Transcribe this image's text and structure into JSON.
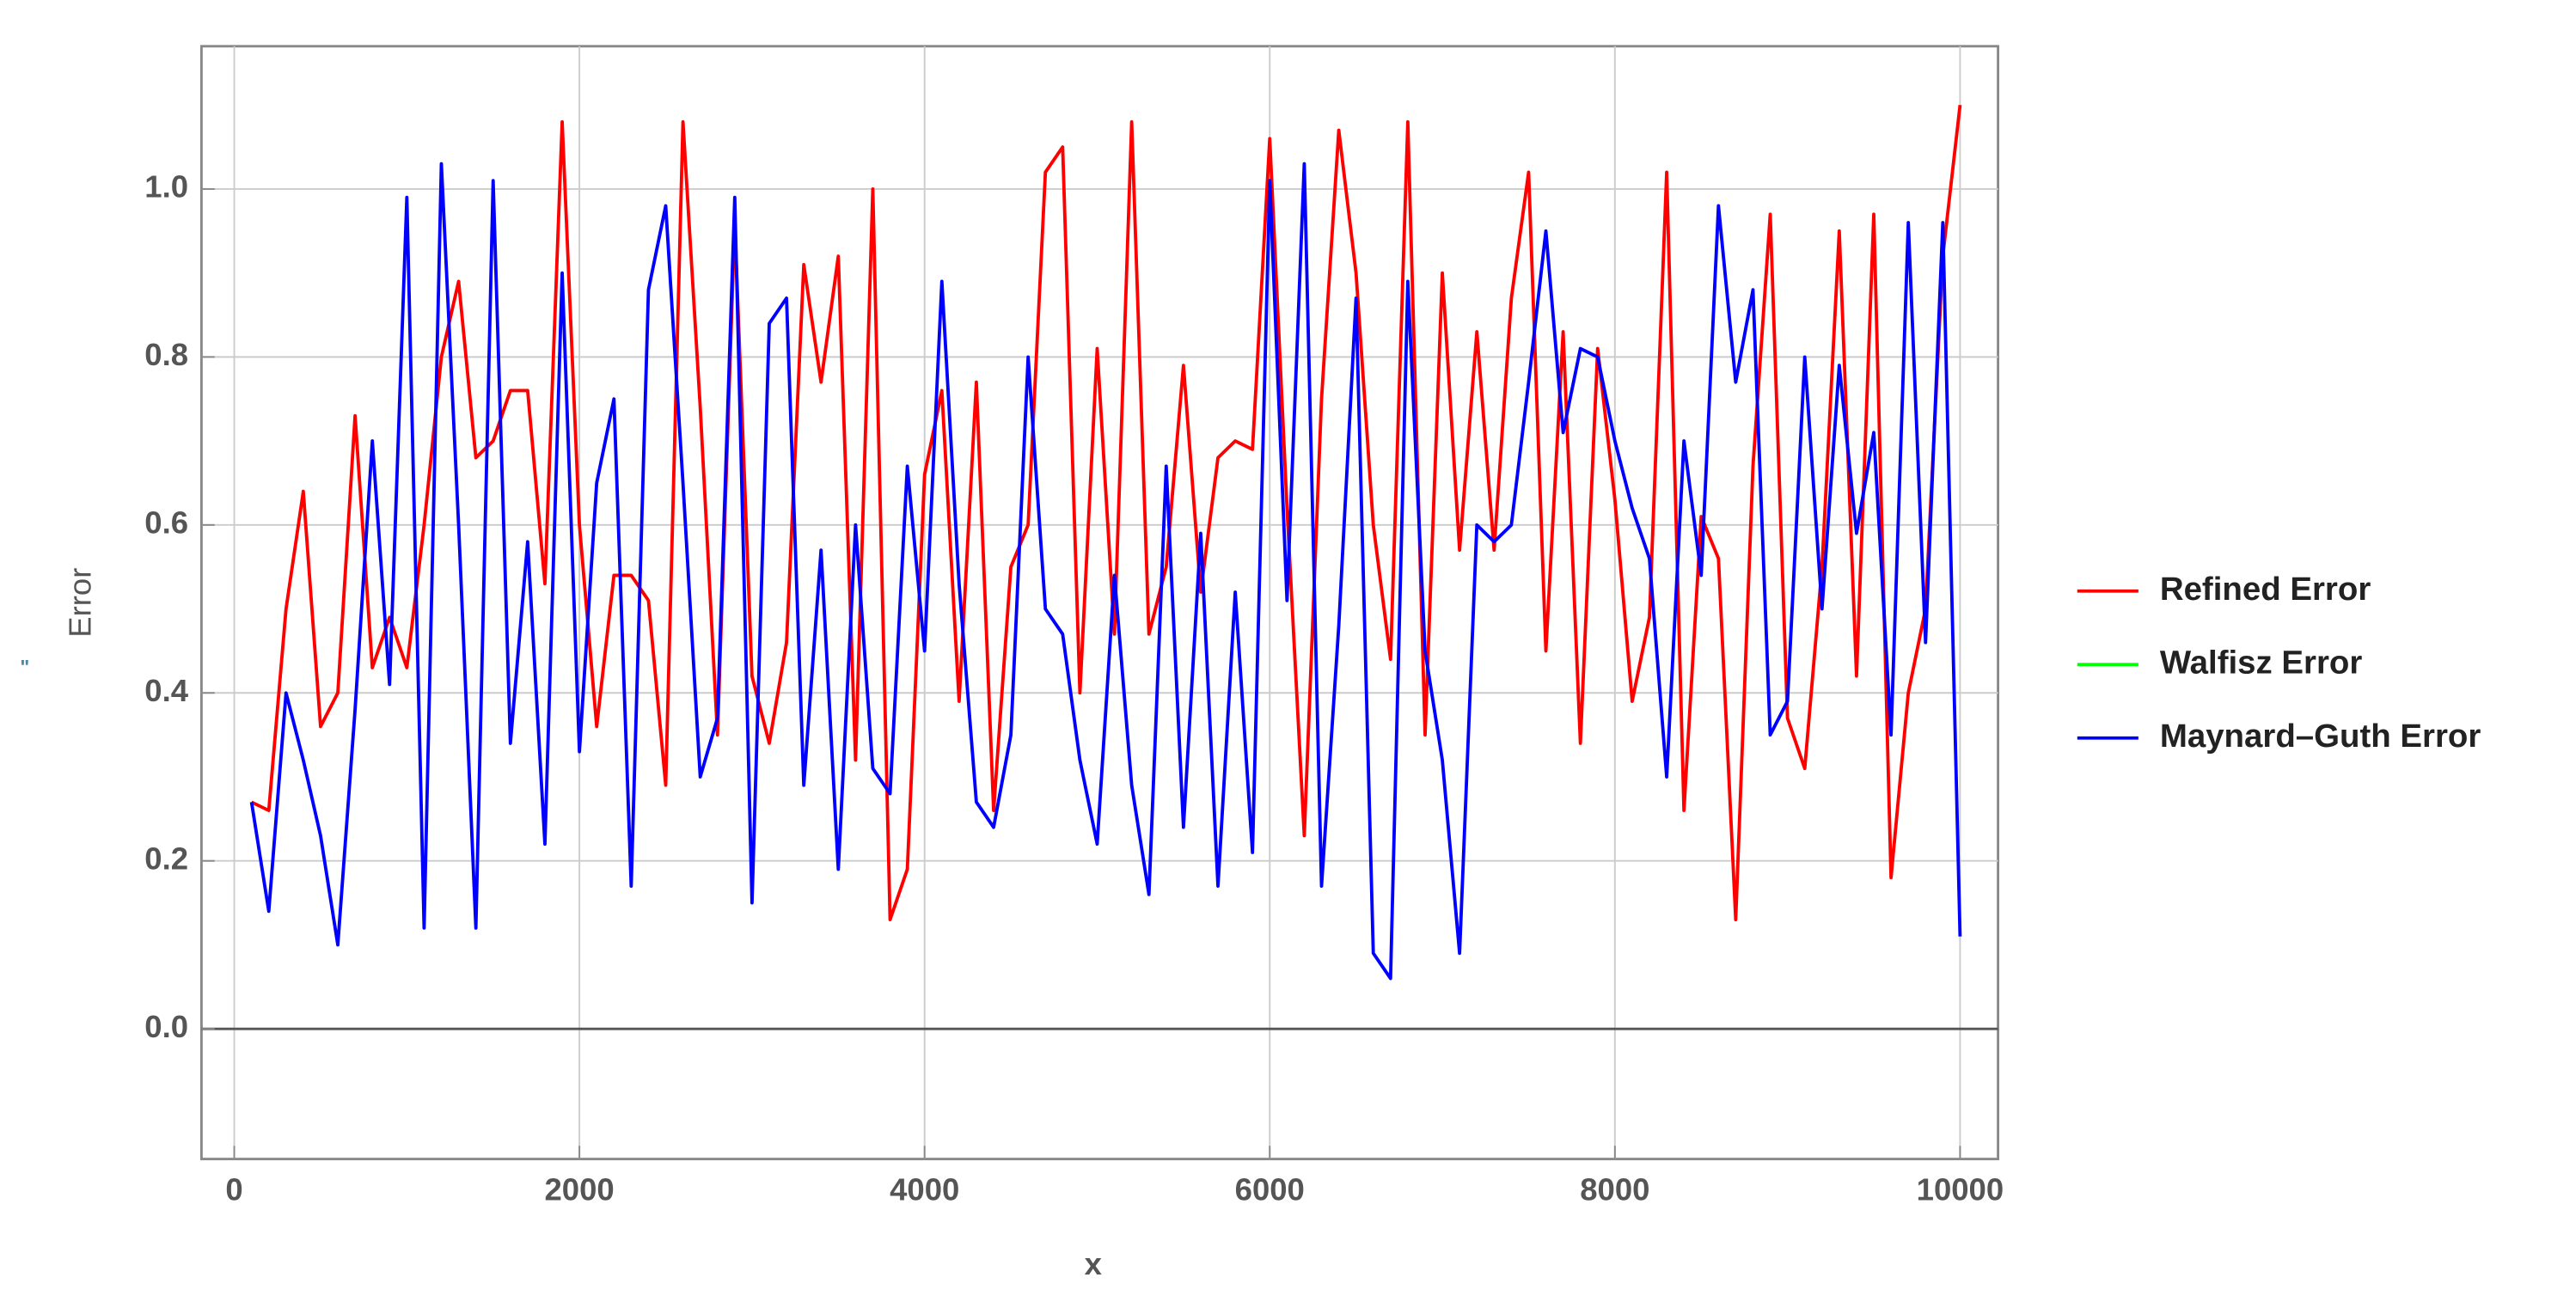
{
  "chart_data": {
    "type": "line",
    "xlabel": "x",
    "ylabel": "Error",
    "annotations": [
      "\""
    ],
    "x": [
      100,
      200,
      300,
      400,
      500,
      600,
      700,
      800,
      900,
      1000,
      1100,
      1200,
      1300,
      1400,
      1500,
      1600,
      1700,
      1800,
      1900,
      2000,
      2100,
      2200,
      2300,
      2400,
      2500,
      2600,
      2700,
      2800,
      2900,
      3000,
      3100,
      3200,
      3300,
      3400,
      3500,
      3600,
      3700,
      3800,
      3900,
      4000,
      4100,
      4200,
      4300,
      4400,
      4500,
      4600,
      4700,
      4800,
      4900,
      5000,
      5100,
      5200,
      5300,
      5400,
      5500,
      5600,
      5700,
      5800,
      5900,
      6000,
      6100,
      6200,
      6300,
      6400,
      6500,
      6600,
      6700,
      6800,
      6900,
      7000,
      7100,
      7200,
      7300,
      7400,
      7500,
      7600,
      7700,
      7800,
      7900,
      8000,
      8100,
      8200,
      8300,
      8400,
      8500,
      8600,
      8700,
      8800,
      8900,
      9000,
      9100,
      9200,
      9300,
      9400,
      9500,
      9600,
      9700,
      9800,
      9900,
      10000
    ],
    "series": [
      {
        "name": "Refined Error",
        "color": "#ff0000",
        "values": [
          0.27,
          0.26,
          0.5,
          0.64,
          0.36,
          0.4,
          0.73,
          0.43,
          0.49,
          0.43,
          0.6,
          0.8,
          0.89,
          0.68,
          0.7,
          0.76,
          0.76,
          0.53,
          1.08,
          0.6,
          0.36,
          0.54,
          0.54,
          0.51,
          0.29,
          1.08,
          0.74,
          0.35,
          0.96,
          0.42,
          0.34,
          0.46,
          0.91,
          0.77,
          0.92,
          0.32,
          1.0,
          0.13,
          0.19,
          0.66,
          0.76,
          0.39,
          0.77,
          0.26,
          0.55,
          0.6,
          1.02,
          1.05,
          0.4,
          0.81,
          0.47,
          1.08,
          0.47,
          0.55,
          0.79,
          0.52,
          0.68,
          0.7,
          0.69,
          1.06,
          0.62,
          0.23,
          0.75,
          1.07,
          0.9,
          0.6,
          0.44,
          1.08,
          0.35,
          0.9,
          0.57,
          0.83,
          0.57,
          0.87,
          1.02,
          0.45,
          0.83,
          0.34,
          0.81,
          0.63,
          0.39,
          0.49,
          1.02,
          0.26,
          0.61,
          0.56,
          0.13,
          0.67,
          0.97,
          0.37,
          0.31,
          0.55,
          0.95,
          0.42,
          0.97,
          0.18,
          0.4,
          0.5,
          0.92,
          1.1
        ]
      },
      {
        "name": "Walfisz Error",
        "color": "#00ff00",
        "values": [
          null,
          null,
          null,
          null,
          null,
          null,
          null,
          null,
          null,
          null,
          null,
          null,
          null,
          null,
          null,
          null,
          null,
          null,
          null,
          null,
          null,
          null,
          null,
          null,
          null,
          null,
          null,
          null,
          null,
          null,
          null,
          null,
          null,
          null,
          null,
          null,
          null,
          null,
          null,
          null,
          null,
          null,
          null,
          null,
          null,
          null,
          null,
          null,
          null,
          null,
          null,
          null,
          null,
          null,
          null,
          null,
          null,
          null,
          null,
          null,
          null,
          null,
          null,
          null,
          null,
          null,
          null,
          null,
          null,
          null,
          null,
          null,
          null,
          null,
          null,
          null,
          null,
          null,
          null,
          null,
          null,
          null,
          null,
          null,
          null,
          null,
          null,
          null,
          null,
          null,
          null,
          null,
          null,
          null,
          null,
          null,
          null,
          null,
          null,
          null
        ]
      },
      {
        "name": "Maynard–Guth Error",
        "color": "#0000ff",
        "values": [
          0.27,
          0.14,
          0.4,
          0.32,
          0.23,
          0.1,
          0.38,
          0.7,
          0.41,
          0.99,
          0.12,
          1.03,
          0.6,
          0.12,
          1.01,
          0.34,
          0.58,
          0.22,
          0.9,
          0.33,
          0.65,
          0.75,
          0.17,
          0.88,
          0.98,
          0.65,
          0.3,
          0.37,
          0.99,
          0.15,
          0.84,
          0.87,
          0.29,
          0.57,
          0.19,
          0.6,
          0.31,
          0.28,
          0.67,
          0.45,
          0.89,
          0.53,
          0.27,
          0.24,
          0.35,
          0.8,
          0.5,
          0.47,
          0.32,
          0.22,
          0.54,
          0.29,
          0.16,
          0.67,
          0.24,
          0.59,
          0.17,
          0.52,
          0.21,
          1.01,
          0.51,
          1.03,
          0.17,
          0.48,
          0.87,
          0.09,
          0.06,
          0.89,
          0.45,
          0.32,
          0.09,
          0.6,
          0.58,
          0.6,
          0.77,
          0.95,
          0.71,
          0.81,
          0.8,
          0.7,
          0.62,
          0.56,
          0.3,
          0.7,
          0.54,
          0.98,
          0.77,
          0.88,
          0.35,
          0.39,
          0.8,
          0.5,
          0.79,
          0.59,
          0.71,
          0.35,
          0.96,
          0.46,
          0.96,
          0.11
        ]
      }
    ],
    "xlim": [
      -190,
      10220
    ],
    "xticks": [
      0,
      2000,
      4000,
      6000,
      8000,
      10000
    ],
    "ylim": [
      -0.155,
      1.17
    ],
    "yticks": [
      {
        "value": 0,
        "label": "0.0"
      },
      0.2,
      0.4,
      0.6,
      0.8,
      {
        "value": 1,
        "label": "1.0"
      }
    ],
    "grid": true,
    "legend": "right"
  }
}
